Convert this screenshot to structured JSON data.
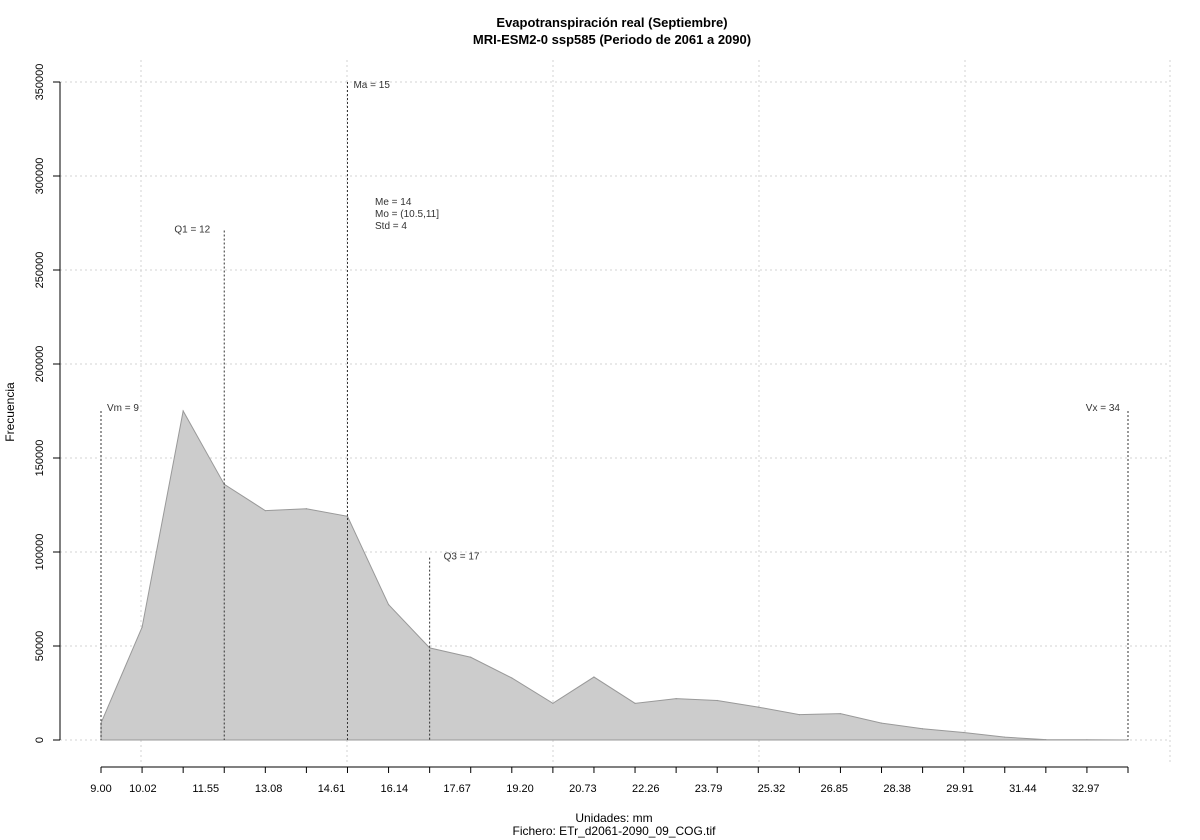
{
  "chart_data": {
    "type": "area",
    "title": "Evapotranspiración real (Septiembre)",
    "subtitle": "MRI-ESM2-0 ssp585 (Periodo de 2061 a 2090)",
    "xlabel": "Unidades: mm",
    "ylabel": "Frecuencia",
    "footer": "Fichero: ETr_d2061-2090_09_COG.tif",
    "xlim": [
      9,
      34
    ],
    "ylim": [
      0,
      350000
    ],
    "grid": true,
    "fill_color": "#cccccc",
    "line_color": "#999999",
    "x": [
      9,
      10,
      11,
      12,
      13,
      14,
      15,
      16,
      17,
      18,
      19,
      20,
      21,
      22,
      23,
      24,
      25,
      26,
      27,
      28,
      29,
      30,
      31,
      32,
      33,
      34
    ],
    "y": [
      9000,
      60000,
      175000,
      136000,
      122000,
      123000,
      119000,
      72000,
      49000,
      44000,
      33000,
      19500,
      33500,
      19500,
      22000,
      21000,
      17500,
      13500,
      14000,
      9000,
      6000,
      4000,
      1500,
      200,
      100,
      0
    ],
    "x_tick_labels": [
      "9.00",
      "10.02",
      "11.55",
      "13.08",
      "14.61",
      "16.14",
      "17.67",
      "19.20",
      "20.73",
      "22.26",
      "23.79",
      "25.32",
      "26.85",
      "28.38",
      "29.91",
      "31.44",
      "32.97"
    ],
    "y_tick_labels": [
      "0",
      "50000",
      "100000",
      "150000",
      "200000",
      "250000",
      "300000",
      "350000"
    ],
    "y_ticks": [
      0,
      50000,
      100000,
      150000,
      200000,
      250000,
      300000,
      350000
    ],
    "annotations": {
      "vm": {
        "label": "Vm = 9",
        "x": 9,
        "line_top": 175000
      },
      "q1": {
        "label": "Q1 = 12",
        "x": 12,
        "line_top": 271000
      },
      "ma": {
        "label": "Ma = 15",
        "x": 15,
        "line_top": 350000
      },
      "q3": {
        "label": "Q3 = 17",
        "x": 17,
        "line_top": 97000
      },
      "vx": {
        "label": "Vx = 34",
        "x": 34,
        "line_top": 175000
      },
      "stats": [
        "Me = 14",
        "Mo = (10.5,11]",
        "Std = 4"
      ]
    }
  }
}
